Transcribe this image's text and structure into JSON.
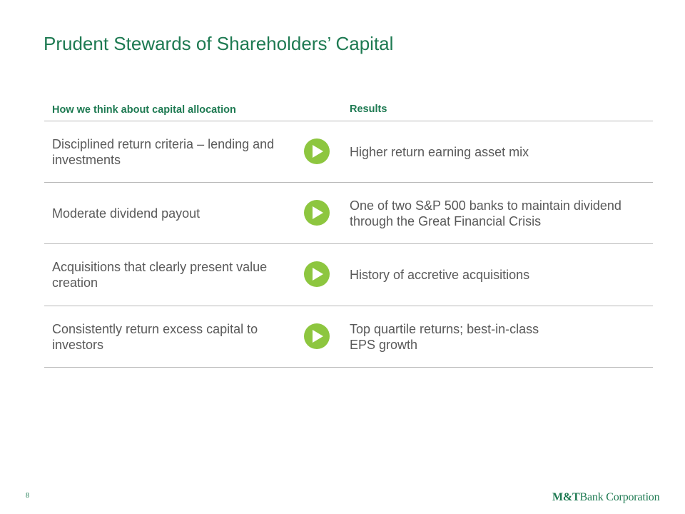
{
  "title": "Prudent Stewards of Shareholders’ Capital",
  "columns": {
    "left": "How we think about capital allocation",
    "right": "Results"
  },
  "rows": [
    {
      "left": "Disciplined return criteria – lending and investments",
      "right": "Higher return earning asset mix",
      "icon": "arrow-right-icon"
    },
    {
      "left": "Moderate dividend payout",
      "right": "One of two S&P 500 banks to maintain dividend through the Great Financial Crisis",
      "icon": "arrow-right-icon"
    },
    {
      "left": "Acquisitions that clearly present value creation",
      "right": "History of accretive acquisitions",
      "icon": "arrow-right-icon"
    },
    {
      "left": "Consistently return excess capital to investors",
      "right": "Top quartile returns; best-in-class EPS growth",
      "icon": "arrow-right-icon"
    }
  ],
  "footer": {
    "page_number": "8",
    "logo_mark": "M&T",
    "logo_text": "Bank Corporation"
  },
  "colors": {
    "brand_green": "#1e7a52",
    "arrow_green": "#8dc63f",
    "body_text": "#595959",
    "rule": "#b9b9b9"
  }
}
